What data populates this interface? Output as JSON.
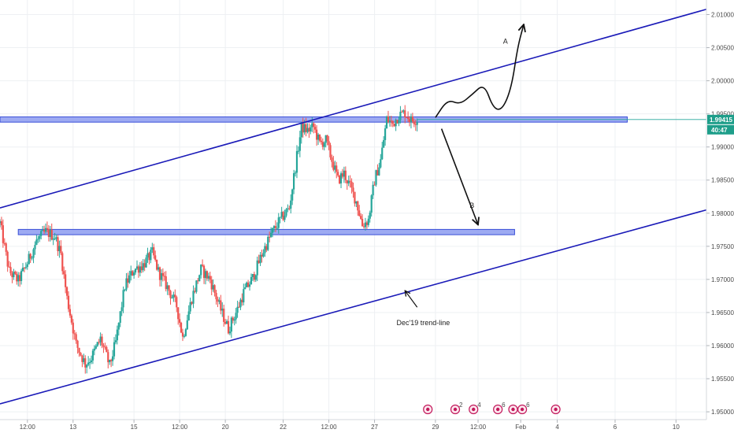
{
  "chart_data": {
    "type": "candlestick",
    "title": "",
    "xlabel": "",
    "ylabel": "",
    "y_axis_side": "right",
    "ylim": [
      1.9468,
      2.0122
    ],
    "xlim": [
      0,
      232
    ],
    "grid": true,
    "colors": {
      "up": "#26a69a",
      "down": "#ef5350",
      "channel": "#1a1ab8",
      "zone_fill": "#8c9bf0",
      "zone_stroke": "#3a4fd8",
      "price_line": "#26a69a",
      "price_label": "#1e9e8a",
      "arrow": "#111111",
      "grid": "#eef0f3",
      "axis_text": "#4a4a4a",
      "event_icon": "#c2185b"
    },
    "x_tick_labels": [
      {
        "label": "12:00",
        "index": 9
      },
      {
        "label": "13",
        "index": 24
      },
      {
        "label": "15",
        "index": 44
      },
      {
        "label": "12:00",
        "index": 59
      },
      {
        "label": "20",
        "index": 74
      },
      {
        "label": "22",
        "index": 93
      },
      {
        "label": "12:00",
        "index": 108
      },
      {
        "label": "27",
        "index": 123
      },
      {
        "label": "29",
        "index": 143
      },
      {
        "label": "12:00",
        "index": 157
      },
      {
        "label": "Feb",
        "index": 171
      },
      {
        "label": "4",
        "index": 183
      },
      {
        "label": "6",
        "index": 202
      },
      {
        "label": "10",
        "index": 222
      }
    ],
    "y_tick_labels": [
      {
        "label": "2.01000",
        "value": 2.01
      },
      {
        "label": "2.00500",
        "value": 2.005
      },
      {
        "label": "2.00000",
        "value": 2.0
      },
      {
        "label": "1.99500",
        "value": 1.995
      },
      {
        "label": "1.99000",
        "value": 1.99
      },
      {
        "label": "1.98500",
        "value": 1.985
      },
      {
        "label": "1.98000",
        "value": 1.98
      },
      {
        "label": "1.97500",
        "value": 1.975
      },
      {
        "label": "1.97000",
        "value": 1.97
      },
      {
        "label": "1.96500",
        "value": 1.965
      },
      {
        "label": "1.96000",
        "value": 1.96
      },
      {
        "label": "1.95500",
        "value": 1.955
      },
      {
        "label": "1.95000",
        "value": 1.95
      }
    ],
    "last_price": {
      "value": 1.99415,
      "label": "1.99415",
      "countdown": "40:47"
    },
    "price_path": [
      [
        0,
        1.9785
      ],
      [
        3,
        1.9712
      ],
      [
        6,
        1.9698
      ],
      [
        9,
        1.9725
      ],
      [
        12,
        1.9758
      ],
      [
        15,
        1.9772
      ],
      [
        18,
        1.9765
      ],
      [
        20,
        1.9738
      ],
      [
        22,
        1.9672
      ],
      [
        25,
        1.9602
      ],
      [
        28,
        1.9572
      ],
      [
        30,
        1.9582
      ],
      [
        33,
        1.961
      ],
      [
        36,
        1.957
      ],
      [
        38,
        1.9605
      ],
      [
        41,
        1.969
      ],
      [
        44,
        1.9715
      ],
      [
        47,
        1.9722
      ],
      [
        50,
        1.974
      ],
      [
        52,
        1.9712
      ],
      [
        55,
        1.9688
      ],
      [
        58,
        1.966
      ],
      [
        60,
        1.9612
      ],
      [
        63,
        1.9672
      ],
      [
        66,
        1.9715
      ],
      [
        69,
        1.97
      ],
      [
        72,
        1.966
      ],
      [
        75,
        1.9625
      ],
      [
        78,
        1.9655
      ],
      [
        80,
        1.968
      ],
      [
        83,
        1.9702
      ],
      [
        86,
        1.9738
      ],
      [
        89,
        1.9768
      ],
      [
        92,
        1.979
      ],
      [
        95,
        1.9808
      ],
      [
        97,
        1.987
      ],
      [
        99,
        1.993
      ],
      [
        101,
        1.9925
      ],
      [
        103,
        1.993
      ],
      [
        105,
        1.9905
      ],
      [
        107,
        1.991
      ],
      [
        109,
        1.988
      ],
      [
        111,
        1.985
      ],
      [
        113,
        1.986
      ],
      [
        115,
        1.984
      ],
      [
        117,
        1.9818
      ],
      [
        119,
        1.9782
      ],
      [
        121,
        1.979
      ],
      [
        123,
        1.985
      ],
      [
        125,
        1.988
      ],
      [
        127,
        1.9942
      ],
      [
        129,
        1.9935
      ],
      [
        131,
        1.9948
      ],
      [
        133,
        1.9952
      ],
      [
        135,
        1.994
      ],
      [
        137,
        1.9942
      ]
    ],
    "channel_lines": [
      {
        "name": "upper-channel",
        "from": [
          0,
          1.9808
        ],
        "to": [
          232,
          2.0108
        ]
      },
      {
        "name": "lower-channel",
        "from": [
          0,
          1.9512
        ],
        "to": [
          232,
          1.9805
        ]
      }
    ],
    "zones": [
      {
        "name": "resistance-zone",
        "x0": 0,
        "x1": 206,
        "y_low": 1.99375,
        "y_high": 1.99455
      },
      {
        "name": "support-zone",
        "x0": 6,
        "x1": 169,
        "y_low": 1.97675,
        "y_high": 1.97755
      }
    ],
    "scenario_paths": [
      {
        "label": "A",
        "points": [
          [
            143,
            1.99445
          ],
          [
            147,
            1.9972
          ],
          [
            151,
            1.9964
          ],
          [
            155,
            1.9979
          ],
          [
            159,
            1.9996
          ],
          [
            162,
            1.9958
          ],
          [
            165,
            1.9956
          ],
          [
            168,
            1.999
          ],
          [
            170,
            2.0051
          ],
          [
            172,
            2.0085
          ]
        ],
        "label_at": [
          166,
          2.0056
        ]
      },
      {
        "label": "B",
        "points": [
          [
            145,
            1.99275
          ],
          [
            157,
            1.97825
          ]
        ],
        "label_at": [
          155,
          1.9808
        ]
      }
    ],
    "annotations": [
      {
        "text": "Dec'19 trend-line",
        "at": [
          139,
          1.9631
        ],
        "arrow_from": [
          137,
          1.9658
        ],
        "arrow_to": [
          133,
          1.9683
        ]
      }
    ],
    "event_markers": [
      {
        "index": 140.5,
        "count": ""
      },
      {
        "index": 149.5,
        "count": "2"
      },
      {
        "index": 155.5,
        "count": "4"
      },
      {
        "index": 163.5,
        "count": "6"
      },
      {
        "index": 168.5,
        "count": ""
      },
      {
        "index": 171.5,
        "count": "6"
      },
      {
        "index": 182.5,
        "count": ""
      }
    ]
  }
}
